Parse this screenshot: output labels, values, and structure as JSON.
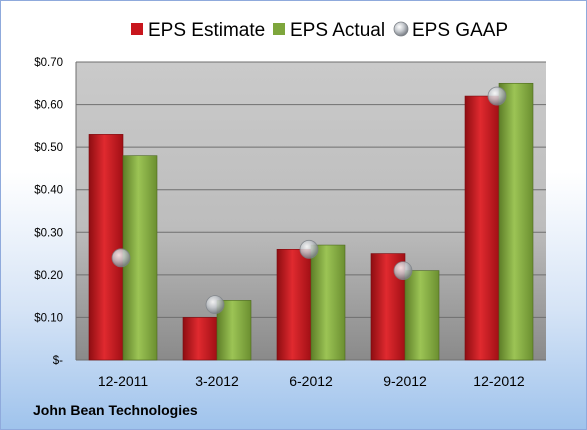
{
  "company_label": "John Bean Technologies",
  "colors": {
    "estimate": "#c8161d",
    "actual": "#7ea63c",
    "gaap": "#c9cdd2",
    "plot_bg_top": "#c9c9c9",
    "plot_bg_bottom": "#8c8c8c",
    "grid": "#6a6a6a"
  },
  "chart_data": {
    "type": "bar",
    "categories": [
      "12-2011",
      "3-2012",
      "6-2012",
      "9-2012",
      "12-2012"
    ],
    "series": [
      {
        "name": "EPS Estimate",
        "kind": "bar",
        "values": [
          0.53,
          0.1,
          0.26,
          0.25,
          0.62
        ]
      },
      {
        "name": "EPS Actual",
        "kind": "bar",
        "values": [
          0.48,
          0.14,
          0.27,
          0.21,
          0.65
        ]
      },
      {
        "name": "EPS GAAP",
        "kind": "marker",
        "values": [
          0.24,
          0.13,
          0.26,
          0.21,
          0.62
        ]
      }
    ],
    "yticks": [
      0,
      0.1,
      0.2,
      0.3,
      0.4,
      0.5,
      0.6,
      0.7
    ],
    "ytick_labels": [
      "$-",
      "$0.10",
      "$0.20",
      "$0.30",
      "$0.40",
      "$0.50",
      "$0.60",
      "$0.70"
    ],
    "ylim": [
      0,
      0.7
    ],
    "grid": true,
    "legend_position": "top"
  }
}
